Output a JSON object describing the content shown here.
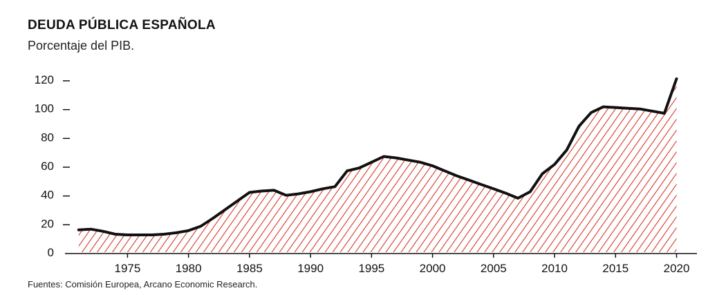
{
  "chart_data": {
    "type": "area",
    "title": "DEUDA PÚBLICA ESPAÑOLA",
    "subtitle": "Porcentaje del PIB.",
    "source": "Fuentes: Comisión Europea, Arcano Economic Research.",
    "xlabel": "",
    "ylabel": "",
    "xlim": [
      1970.5,
      2021.5
    ],
    "ylim": [
      0,
      120
    ],
    "x_ticks": [
      1975,
      1980,
      1985,
      1990,
      1995,
      2000,
      2005,
      2010,
      2015,
      2020
    ],
    "y_ticks": [
      0,
      20,
      40,
      60,
      80,
      100,
      120
    ],
    "grid": false,
    "legend": "none",
    "fill": "diagonal-hatch",
    "colors": {
      "line": "#111111",
      "hatch": "#d4382a"
    },
    "series": [
      {
        "x": [
          1971,
          1972,
          1973,
          1974,
          1975,
          1976,
          1977,
          1978,
          1979,
          1980,
          1981,
          1982,
          1983,
          1984,
          1985,
          1986,
          1987,
          1988,
          1989,
          1990,
          1991,
          1992,
          1993,
          1994,
          1995,
          1996,
          1997,
          1998,
          1999,
          2000,
          2001,
          2002,
          2003,
          2004,
          2005,
          2006,
          2007,
          2008,
          2009,
          2010,
          2011,
          2012,
          2013,
          2014,
          2015,
          2016,
          2017,
          2018,
          2019,
          2020,
          2021
        ],
        "values": [
          15.5,
          16.0,
          14.5,
          12.5,
          12.0,
          12.0,
          12.0,
          12.5,
          13.5,
          15.0,
          18.0,
          23.5,
          29.5,
          35.5,
          41.5,
          42.5,
          43.0,
          39.5,
          40.5,
          42.0,
          44.0,
          45.5,
          56.5,
          58.5,
          62.5,
          66.5,
          65.5,
          64.0,
          62.5,
          60.0,
          56.5,
          53.0,
          50.0,
          47.0,
          44.0,
          41.0,
          37.5,
          42.0,
          54.5,
          61.0,
          71.0,
          87.5,
          97.0,
          101.0,
          100.5,
          100.0,
          99.5,
          98.0,
          96.5,
          120.5,
          null
        ]
      }
    ]
  }
}
